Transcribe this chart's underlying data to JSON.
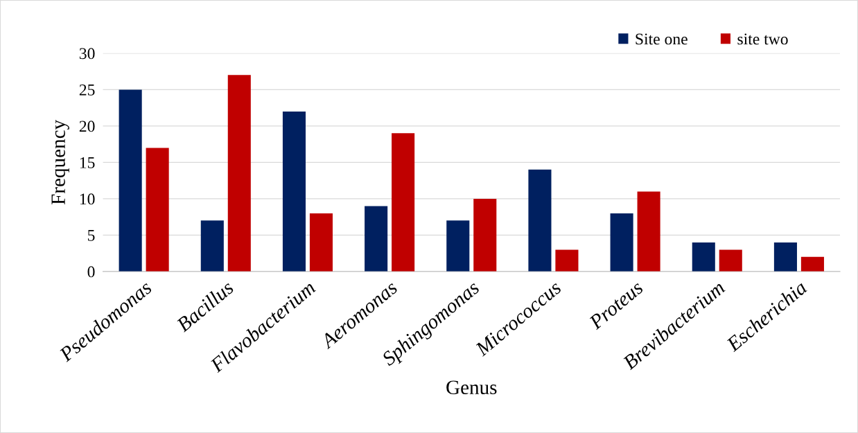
{
  "chart_data": {
    "type": "bar",
    "xlabel": "Genus",
    "ylabel": "Frequency",
    "categories": [
      "Pseudomonas",
      "Bacillus",
      "Flavobacterium",
      "Aeromonas",
      "Sphingomonas",
      "Micrococcus",
      "Proteus",
      "Brevibacterium",
      "Escherichia"
    ],
    "series": [
      {
        "name": "Site one",
        "color": "#002060",
        "values": [
          25,
          7,
          22,
          9,
          7,
          14,
          8,
          4,
          4
        ]
      },
      {
        "name": "site two",
        "color": "#c00000",
        "values": [
          17,
          27,
          8,
          19,
          10,
          3,
          11,
          3,
          2
        ]
      }
    ],
    "ylim": [
      0,
      30
    ],
    "yticks": [
      0,
      5,
      10,
      15,
      20,
      25,
      30
    ],
    "grid": "y",
    "legend": "top right"
  }
}
